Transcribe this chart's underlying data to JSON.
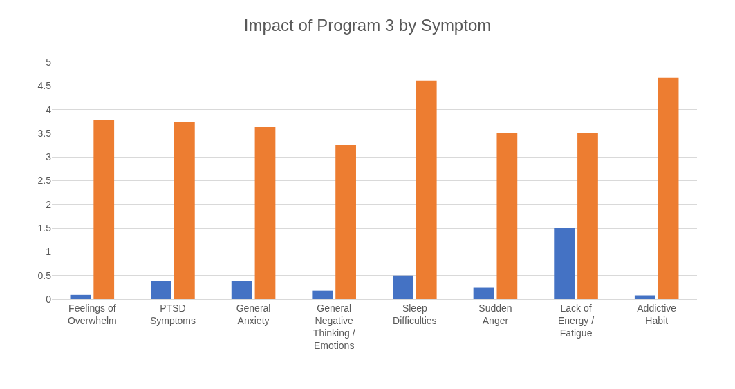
{
  "chart_data": {
    "type": "bar",
    "title": "Impact of Program 3 by Symptom",
    "categories": [
      "Feelings of Overwhelm",
      "PTSD Symptoms",
      "General Anxiety",
      "General Negative Thinking / Emotions",
      "Sleep Difficulties",
      "Sudden Anger",
      "Lack of Energy / Fatigue",
      "Addictive Habit"
    ],
    "series": [
      {
        "color": "#4472c4",
        "values": [
          0.09,
          0.38,
          0.38,
          0.18,
          0.5,
          0.24,
          1.5,
          0.08
        ]
      },
      {
        "color": "#ed7d31",
        "values": [
          3.79,
          3.74,
          3.63,
          3.25,
          4.61,
          3.5,
          3.5,
          4.67
        ]
      }
    ],
    "ylim": [
      0,
      5
    ],
    "yticks": [
      0,
      0.5,
      1,
      1.5,
      2,
      2.5,
      3,
      3.5,
      4,
      4.5,
      5
    ],
    "grid": "y"
  }
}
